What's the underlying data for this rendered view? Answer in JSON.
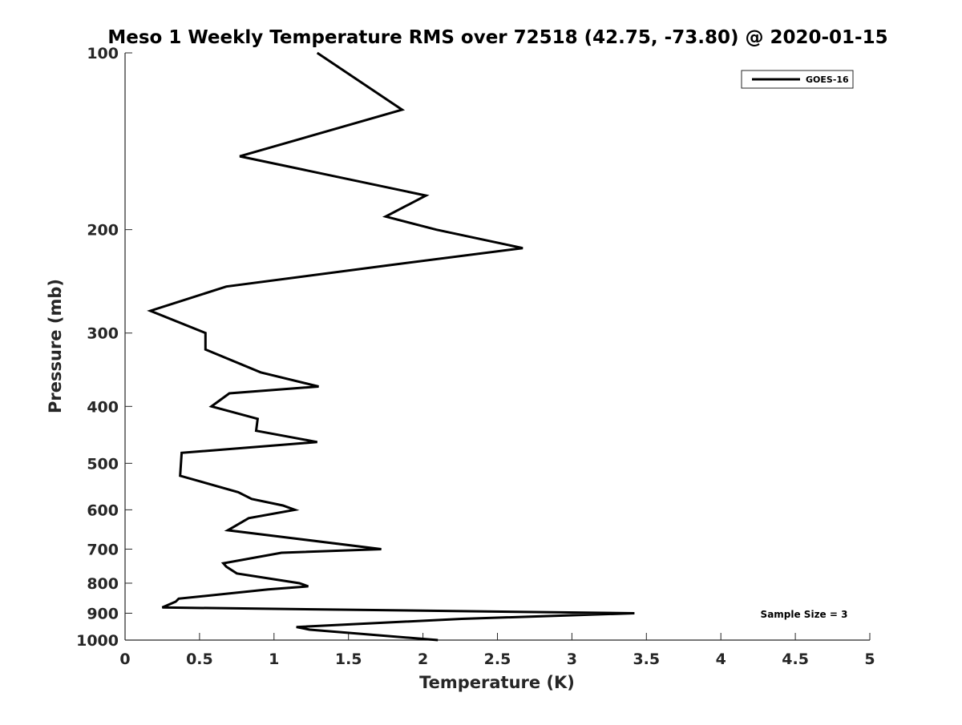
{
  "chart_data": {
    "type": "line",
    "title": "Meso 1 Weekly Temperature RMS over 72518 (42.75, -73.80) @ 2020-01-15",
    "xlabel": "Temperature (K)",
    "ylabel": "Pressure (mb)",
    "xlim": [
      0,
      5
    ],
    "ylim": [
      100,
      1000
    ],
    "y_scale": "log",
    "y_reversed": true,
    "x_ticks": [
      "0",
      "0.5",
      "1",
      "1.5",
      "2",
      "2.5",
      "3",
      "3.5",
      "4",
      "4.5",
      "5"
    ],
    "y_ticks": [
      "100",
      "200",
      "300",
      "400",
      "500",
      "600",
      "700",
      "800",
      "900",
      "1000"
    ],
    "grid": false,
    "legend": {
      "position": "top-right",
      "entries": [
        "GOES-16"
      ]
    },
    "annotation": "Sample Size = 3",
    "series": [
      {
        "name": "GOES-16",
        "color": "#000000",
        "points": [
          [
            1.29,
            100
          ],
          [
            1.86,
            125
          ],
          [
            0.77,
            150
          ],
          [
            2.02,
            175
          ],
          [
            1.75,
            190
          ],
          [
            2.09,
            200
          ],
          [
            2.67,
            215
          ],
          [
            1.77,
            230
          ],
          [
            0.68,
            250
          ],
          [
            0.17,
            275
          ],
          [
            0.54,
            300
          ],
          [
            0.54,
            320
          ],
          [
            0.91,
            350
          ],
          [
            1.3,
            370
          ],
          [
            0.7,
            380
          ],
          [
            0.58,
            400
          ],
          [
            0.89,
            420
          ],
          [
            0.88,
            440
          ],
          [
            1.29,
            460
          ],
          [
            0.38,
            480
          ],
          [
            0.37,
            525
          ],
          [
            0.76,
            560
          ],
          [
            0.85,
            575
          ],
          [
            1.06,
            590
          ],
          [
            1.14,
            600
          ],
          [
            0.83,
            620
          ],
          [
            0.69,
            650
          ],
          [
            1.11,
            670
          ],
          [
            1.72,
            700
          ],
          [
            1.05,
            710
          ],
          [
            0.66,
            740
          ],
          [
            0.68,
            750
          ],
          [
            0.75,
            770
          ],
          [
            1.17,
            800
          ],
          [
            1.23,
            810
          ],
          [
            0.96,
            820
          ],
          [
            0.36,
            850
          ],
          [
            0.34,
            860
          ],
          [
            0.25,
            880
          ],
          [
            3.42,
            900
          ],
          [
            2.26,
            920
          ],
          [
            1.15,
            950
          ],
          [
            1.24,
            960
          ],
          [
            2.1,
            1000
          ]
        ]
      }
    ]
  }
}
